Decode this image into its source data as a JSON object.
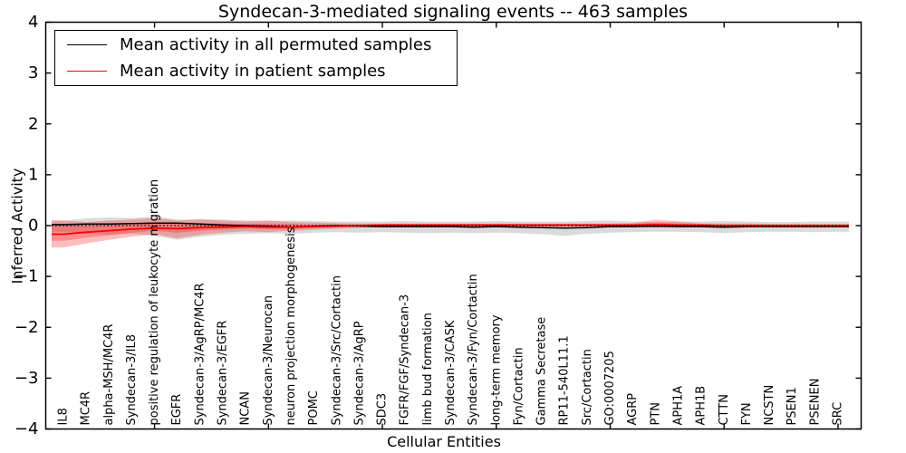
{
  "title": "Syndecan-3-mediated signaling events -- 463 samples",
  "legend": {
    "items": [
      {
        "label": "Mean activity in all permuted samples",
        "color": "#000000"
      },
      {
        "label": "Mean activity in patient samples",
        "color": "#ff0000"
      }
    ]
  },
  "chart_data": {
    "type": "line",
    "title": "Syndecan-3-mediated signaling events -- 463 samples",
    "xlabel": "Cellular Entities",
    "ylabel": "Inferred Activity",
    "ylim": [
      -4,
      4
    ],
    "yticks": [
      -4,
      -3,
      -2,
      -1,
      0,
      1,
      2,
      3,
      4
    ],
    "x_major_tick_indices": [
      4,
      9,
      14,
      19,
      24,
      29,
      34
    ],
    "grid": false,
    "legend_position": "upper left",
    "baseline": {
      "y": 0,
      "style": "dotted",
      "color": "#000000"
    },
    "categories": [
      "IL8",
      "MC4R",
      "alpha-MSH/MC4R",
      "Syndecan-3/IL8",
      "positive regulation of leukocyte migration",
      "EGFR",
      "Syndecan-3/AgRP/MC4R",
      "Syndecan-3/EGFR",
      "NCAN",
      "Syndecan-3/Neurocan",
      "neuron projection morphogenesis",
      "POMC",
      "Syndecan-3/Src/Cortactin",
      "Syndecan-3/AgRP",
      "SDC3",
      "FGFR/FGF/Syndecan-3",
      "limb bud formation",
      "Syndecan-3/CASK",
      "Syndecan-3/Fyn/Cortactin",
      "long-term memory",
      "Fyn/Cortactin",
      "Gamma Secretase",
      "RP11-540L11.1",
      "Src/Cortactin",
      "GO:0007205",
      "AGRP",
      "PTN",
      "APH1A",
      "APH1B",
      "CTTN",
      "FYN",
      "NCSTN",
      "PSEN1",
      "PSENEN",
      "SRC"
    ],
    "series": [
      {
        "name": "Mean activity in all permuted samples",
        "color": "#000000",
        "values": [
          0.02,
          0.03,
          0.03,
          0.04,
          0.05,
          0.05,
          0.03,
          0.01,
          0.0,
          -0.01,
          -0.03,
          -0.01,
          0.0,
          -0.01,
          -0.02,
          -0.02,
          -0.02,
          -0.02,
          -0.03,
          -0.02,
          -0.03,
          -0.04,
          -0.05,
          -0.04,
          -0.02,
          -0.02,
          -0.01,
          -0.02,
          -0.02,
          -0.03,
          -0.02,
          -0.02,
          -0.02,
          -0.02,
          -0.02
        ]
      },
      {
        "name": "Mean activity in patient samples",
        "color": "#ff0000",
        "values": [
          -0.17,
          -0.13,
          -0.1,
          -0.07,
          -0.05,
          -0.06,
          -0.04,
          -0.03,
          -0.02,
          -0.03,
          -0.03,
          -0.02,
          -0.01,
          0.0,
          0.01,
          0.01,
          0.01,
          0.01,
          0.01,
          0.01,
          0.01,
          0.01,
          0.01,
          0.01,
          0.01,
          0.01,
          0.02,
          0.01,
          0.01,
          0.0,
          0.0,
          0.0,
          0.0,
          0.0,
          0.0
        ]
      }
    ],
    "bands": [
      {
        "name": "permuted-sample-range",
        "color": "#999999",
        "opacity": 0.35,
        "upper": [
          0.1,
          0.14,
          0.16,
          0.15,
          0.18,
          0.12,
          0.11,
          0.12,
          0.1,
          0.09,
          0.1,
          0.09,
          0.08,
          0.08,
          0.08,
          0.09,
          0.08,
          0.08,
          0.08,
          0.09,
          0.08,
          0.08,
          0.08,
          0.09,
          0.1,
          0.08,
          0.07,
          0.08,
          0.08,
          0.09,
          0.08,
          0.07,
          0.07,
          0.08,
          0.08
        ],
        "lower": [
          -0.12,
          -0.16,
          -0.18,
          -0.16,
          -0.2,
          -0.28,
          -0.22,
          -0.18,
          -0.16,
          -0.15,
          -0.16,
          -0.14,
          -0.13,
          -0.14,
          -0.13,
          -0.14,
          -0.15,
          -0.14,
          -0.15,
          -0.14,
          -0.15,
          -0.17,
          -0.2,
          -0.16,
          -0.14,
          -0.13,
          -0.12,
          -0.12,
          -0.13,
          -0.15,
          -0.13,
          -0.12,
          -0.12,
          -0.13,
          -0.12
        ]
      },
      {
        "name": "patient-sample-outer-range",
        "color": "#ff0000",
        "opacity": 0.26,
        "upper": [
          0.1,
          0.07,
          0.1,
          0.12,
          0.15,
          0.1,
          0.13,
          0.1,
          0.08,
          0.1,
          0.07,
          0.06,
          0.05,
          0.04,
          0.04,
          0.04,
          0.04,
          0.04,
          0.04,
          0.04,
          0.04,
          0.04,
          0.04,
          0.04,
          0.04,
          0.05,
          0.12,
          0.08,
          0.04,
          0.04,
          0.04,
          0.03,
          0.03,
          0.03,
          0.03
        ],
        "lower": [
          -0.43,
          -0.35,
          -0.28,
          -0.22,
          -0.17,
          -0.25,
          -0.18,
          -0.14,
          -0.11,
          -0.13,
          -0.1,
          -0.08,
          -0.06,
          -0.04,
          -0.03,
          -0.03,
          -0.03,
          -0.03,
          -0.03,
          -0.03,
          -0.02,
          -0.02,
          -0.03,
          -0.02,
          -0.02,
          -0.02,
          -0.04,
          -0.03,
          -0.02,
          -0.02,
          -0.02,
          -0.02,
          -0.02,
          -0.02,
          -0.02
        ]
      },
      {
        "name": "patient-sample-inner-range",
        "color": "#ff0000",
        "opacity": 0.25,
        "upper": [
          0.02,
          0.01,
          0.03,
          0.04,
          0.06,
          0.03,
          0.05,
          0.04,
          0.03,
          0.04,
          0.03,
          0.02,
          0.02,
          0.02,
          0.02,
          0.02,
          0.02,
          0.02,
          0.02,
          0.02,
          0.02,
          0.02,
          0.02,
          0.02,
          0.02,
          0.03,
          0.06,
          0.04,
          0.02,
          0.02,
          0.02,
          0.01,
          0.01,
          0.01,
          0.01
        ],
        "lower": [
          -0.3,
          -0.24,
          -0.19,
          -0.14,
          -0.1,
          -0.14,
          -0.1,
          -0.08,
          -0.06,
          -0.07,
          -0.06,
          -0.05,
          -0.03,
          -0.02,
          -0.01,
          -0.01,
          -0.01,
          -0.01,
          -0.01,
          -0.01,
          -0.01,
          -0.01,
          -0.01,
          -0.01,
          -0.01,
          -0.01,
          -0.02,
          -0.01,
          -0.01,
          -0.01,
          -0.01,
          -0.01,
          -0.01,
          -0.01,
          -0.01
        ]
      }
    ]
  }
}
